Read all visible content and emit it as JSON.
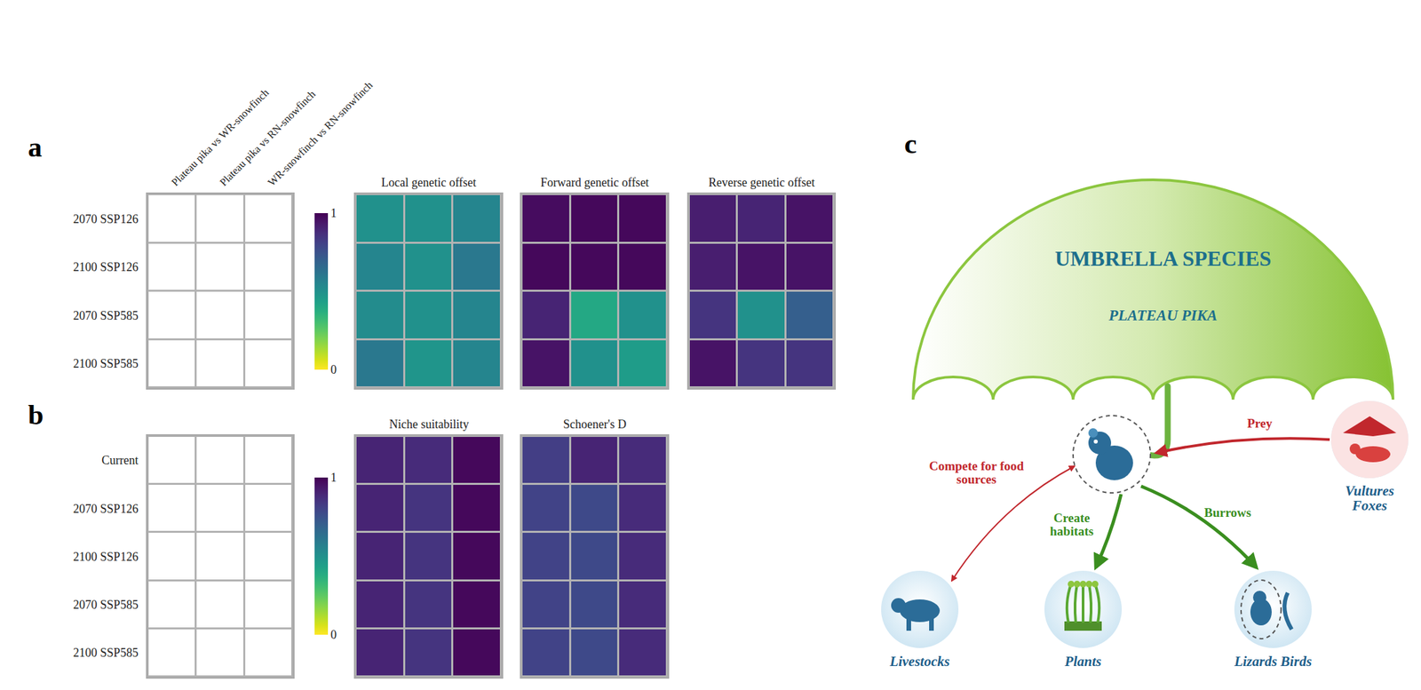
{
  "chart_data": [
    {
      "type": "heatmap",
      "label": "a",
      "columns": [
        "Plateau pika vs WR-snowfinch",
        "Plateau pika vs RN-snowfinch",
        "WR-snowfinch vs RN-snowfinch"
      ],
      "rows": [
        "2070 SSP126",
        "2100 SSP126",
        "2070 SSP585",
        "2100 SSP585"
      ],
      "colorbar": {
        "range": [
          0,
          1
        ],
        "ticks": [
          0,
          1
        ]
      },
      "panels": [
        {
          "title": "Local genetic offset",
          "cells": [
            [
              0.5,
              0.5,
              0.55
            ],
            [
              0.55,
              0.5,
              0.6
            ],
            [
              0.52,
              0.5,
              0.55
            ],
            [
              0.6,
              0.48,
              0.55
            ]
          ]
        },
        {
          "title": "Forward genetic offset",
          "cells": [
            [
              0.97,
              0.98,
              0.98
            ],
            [
              0.98,
              0.98,
              0.98
            ],
            [
              0.9,
              0.4,
              0.5
            ],
            [
              0.95,
              0.5,
              0.45
            ]
          ]
        },
        {
          "title": "Reverse genetic offset",
          "cells": [
            [
              0.92,
              0.9,
              0.95
            ],
            [
              0.92,
              0.95,
              0.95
            ],
            [
              0.85,
              0.5,
              0.7
            ],
            [
              0.95,
              0.85,
              0.85
            ]
          ]
        }
      ]
    },
    {
      "type": "heatmap",
      "label": "b",
      "rows": [
        "Current",
        "2070 SSP126",
        "2100 SSP126",
        "2070 SSP585",
        "2100 SSP585"
      ],
      "colorbar": {
        "range": [
          0,
          1
        ],
        "ticks": [
          0,
          1
        ]
      },
      "panels": [
        {
          "title": "Niche suitability",
          "cells": [
            [
              0.9,
              0.88,
              0.98
            ],
            [
              0.9,
              0.85,
              0.98
            ],
            [
              0.9,
              0.85,
              0.98
            ],
            [
              0.9,
              0.85,
              0.98
            ],
            [
              0.9,
              0.85,
              0.98
            ]
          ]
        },
        {
          "title": "Schoener's D",
          "cells": [
            [
              0.82,
              0.9,
              0.88
            ],
            [
              0.8,
              0.78,
              0.88
            ],
            [
              0.8,
              0.78,
              0.88
            ],
            [
              0.8,
              0.78,
              0.88
            ],
            [
              0.8,
              0.78,
              0.88
            ]
          ]
        }
      ]
    }
  ],
  "diagram": {
    "label": "c",
    "title": "UMBRELLA SPECIES",
    "species": "PLATEAU PIKA",
    "interactions": [
      {
        "label": "Compete for food sources",
        "node": "Livestocks"
      },
      {
        "label": "Create habitats",
        "node": "Plants"
      },
      {
        "label": "Burrows",
        "node": "Lizards Birds"
      },
      {
        "label": "Prey",
        "node": "Vultures Foxes"
      }
    ]
  }
}
